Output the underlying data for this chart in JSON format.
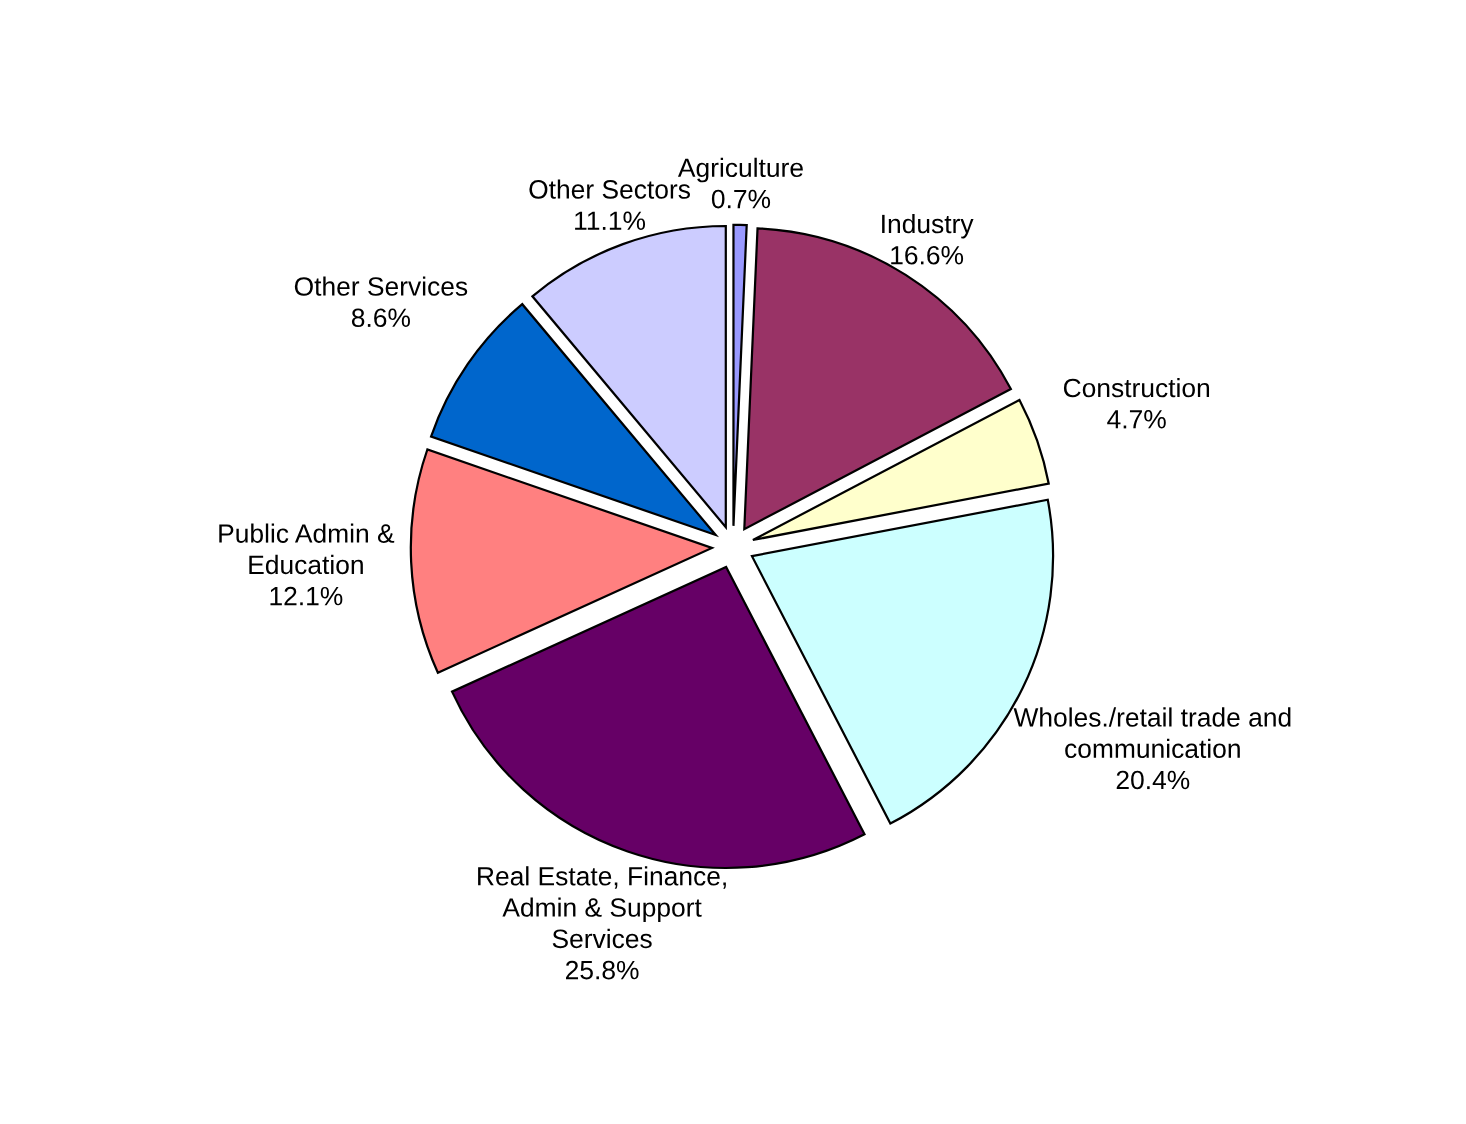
{
  "chart_data": {
    "type": "pie",
    "categories": [
      "Agriculture",
      "Industry",
      "Construction",
      "Wholes./retail trade and\ncommunication",
      "Real Estate, Finance,\nAdmin & Support\nServices",
      "Public Admin &\nEducation",
      "Other Services",
      "Other Sectors"
    ],
    "values": [
      0.7,
      16.6,
      4.7,
      20.4,
      25.8,
      12.1,
      8.6,
      11.1
    ],
    "value_labels": [
      "0.7%",
      "16.6%",
      "4.7%",
      "20.4%",
      "25.8%",
      "12.1%",
      "8.6%",
      "11.1%"
    ],
    "colors": [
      "#9999ff",
      "#993366",
      "#ffffcc",
      "#ccffff",
      "#660066",
      "#ff8080",
      "#0066cc",
      "#ccccff"
    ],
    "legend": false
  }
}
